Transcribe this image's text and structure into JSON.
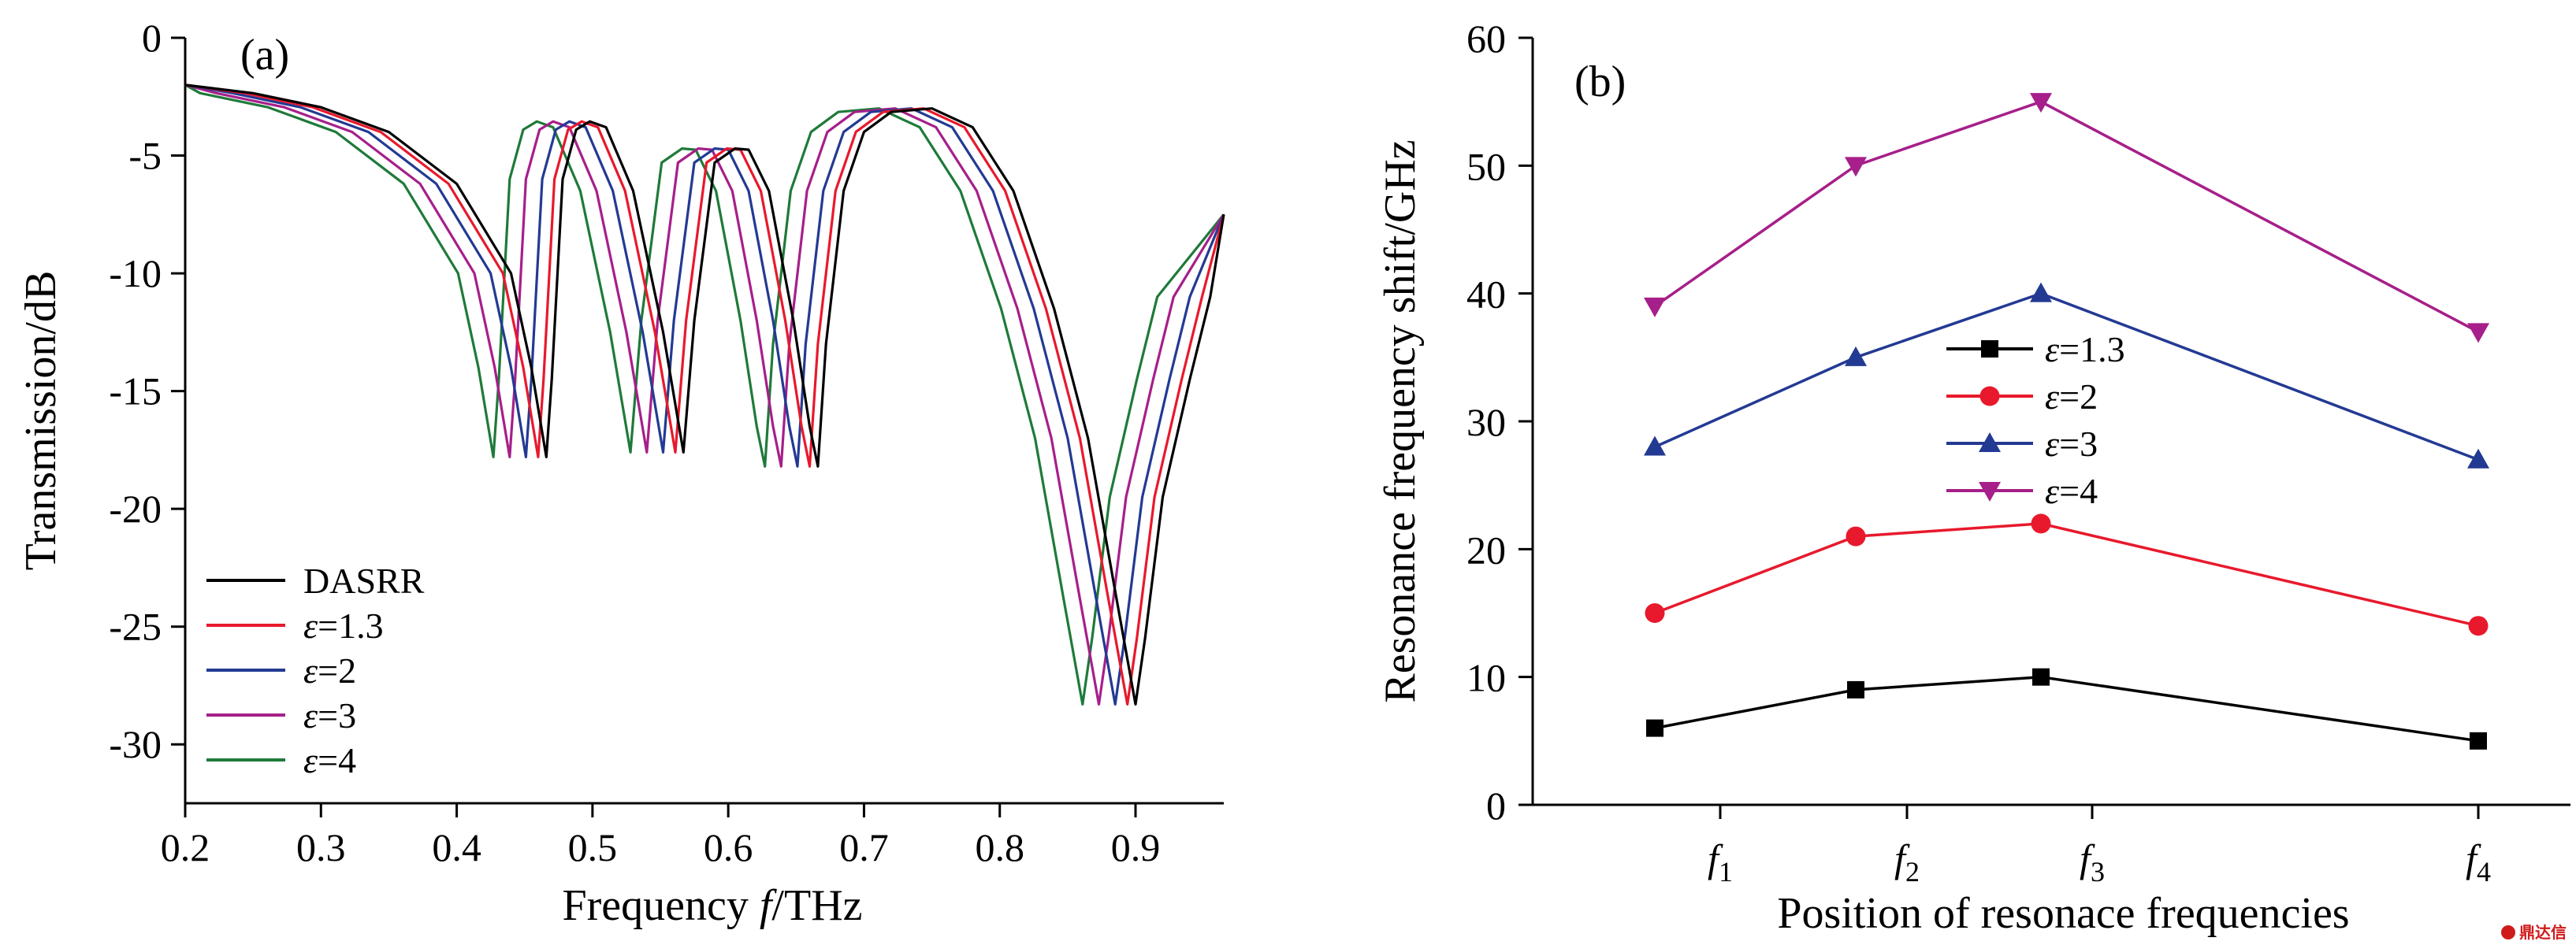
{
  "chart_data": [
    {
      "type": "line",
      "panel": "(a)",
      "xlabel": "Frequency f/THz",
      "xlabel_parts": {
        "pre": "Frequency ",
        "var": "f",
        "post": "/THz"
      },
      "ylabel": "Transmission/dB",
      "xlim": [
        0.2,
        0.965
      ],
      "ylim": [
        -32.5,
        0
      ],
      "xticks": [
        0.2,
        0.3,
        0.4,
        0.5,
        0.6,
        0.7,
        0.8,
        0.9
      ],
      "xtick_labels": [
        "0.2",
        "0.3",
        "0.4",
        "0.5",
        "0.6",
        "0.7",
        "0.8",
        "0.9"
      ],
      "yticks": [
        0,
        -5,
        -10,
        -15,
        -20,
        -25,
        -30
      ],
      "ytick_labels": [
        "0",
        "-5",
        "-10",
        "-15",
        "-20",
        "-25",
        "-30"
      ],
      "legend_position": "lower-left",
      "series": [
        {
          "name": "DASRR",
          "sym": "",
          "num": "",
          "color": "#000000",
          "shift": 0,
          "points": [
            [
              0.2,
              -2.0
            ],
            [
              0.25,
              -2.35
            ],
            [
              0.3,
              -2.95
            ],
            [
              0.35,
              -4.0
            ],
            [
              0.4,
              -6.2
            ],
            [
              0.44,
              -10.0
            ],
            [
              0.455,
              -14.0
            ],
            [
              0.466,
              -17.8
            ],
            [
              0.47,
              -14.5
            ],
            [
              0.478,
              -6.0
            ],
            [
              0.488,
              -3.9
            ],
            [
              0.498,
              -3.55
            ],
            [
              0.51,
              -3.8
            ],
            [
              0.53,
              -6.5
            ],
            [
              0.552,
              -12.5
            ],
            [
              0.567,
              -17.6
            ],
            [
              0.575,
              -12.0
            ],
            [
              0.59,
              -5.3
            ],
            [
              0.605,
              -4.7
            ],
            [
              0.615,
              -4.75
            ],
            [
              0.63,
              -6.5
            ],
            [
              0.648,
              -12.0
            ],
            [
              0.66,
              -16.5
            ],
            [
              0.666,
              -18.2
            ],
            [
              0.672,
              -13.0
            ],
            [
              0.685,
              -6.5
            ],
            [
              0.7,
              -4.0
            ],
            [
              0.72,
              -3.15
            ],
            [
              0.75,
              -3.0
            ],
            [
              0.78,
              -3.8
            ],
            [
              0.81,
              -6.5
            ],
            [
              0.84,
              -11.5
            ],
            [
              0.865,
              -17.0
            ],
            [
              0.885,
              -23.5
            ],
            [
              0.9,
              -28.3
            ],
            [
              0.907,
              -25.5
            ],
            [
              0.92,
              -19.5
            ],
            [
              0.94,
              -14.5
            ],
            [
              0.955,
              -11.0
            ],
            [
              0.965,
              -7.5
            ]
          ]
        },
        {
          "name": "ε=1.3",
          "sym": "ε",
          "num": "=1.3",
          "color": "#e8192c",
          "shift": 0.006
        },
        {
          "name": "ε=2",
          "sym": "ε",
          "num": "=2",
          "color": "#233a93",
          "shift": 0.015
        },
        {
          "name": "ε=3",
          "sym": "ε",
          "num": "=3",
          "color": "#a61f8a",
          "shift": 0.027
        },
        {
          "name": "ε=4",
          "sym": "ε",
          "num": "=4",
          "color": "#1f7a3a",
          "shift": 0.039
        }
      ]
    },
    {
      "type": "line",
      "panel": "(b)",
      "xlabel": "Position of resonace frequencies",
      "ylabel": "Resonance frequency shift/GHz",
      "ylim": [
        0,
        60
      ],
      "yticks": [
        0,
        10,
        20,
        30,
        40,
        50,
        60
      ],
      "ytick_labels": [
        "0",
        "10",
        "20",
        "30",
        "40",
        "50",
        "60"
      ],
      "x_positions": [
        1,
        2,
        3,
        4
      ],
      "categories": [
        {
          "base": "f",
          "sub": "1"
        },
        {
          "base": "f",
          "sub": "2"
        },
        {
          "base": "f",
          "sub": "3"
        },
        {
          "base": "f",
          "sub": "4"
        }
      ],
      "legend_position": "center",
      "series": [
        {
          "name": "ε=1.3",
          "sym": "ε",
          "num": "=1.3",
          "color": "#000000",
          "marker": "square",
          "values": [
            6,
            9,
            10,
            5
          ]
        },
        {
          "name": "ε=2",
          "sym": "ε",
          "num": "=2",
          "color": "#e8192c",
          "marker": "circle",
          "values": [
            15,
            21,
            22,
            14
          ]
        },
        {
          "name": "ε=3",
          "sym": "ε",
          "num": "=3",
          "color": "#233a93",
          "marker": "triangle-up",
          "values": [
            28,
            35,
            40,
            27
          ]
        },
        {
          "name": "ε=4",
          "sym": "ε",
          "num": "=4",
          "color": "#a61f8a",
          "marker": "triangle-down",
          "values": [
            39,
            50,
            55,
            37
          ]
        }
      ]
    }
  ],
  "watermark": {
    "text": "鼎达信"
  }
}
